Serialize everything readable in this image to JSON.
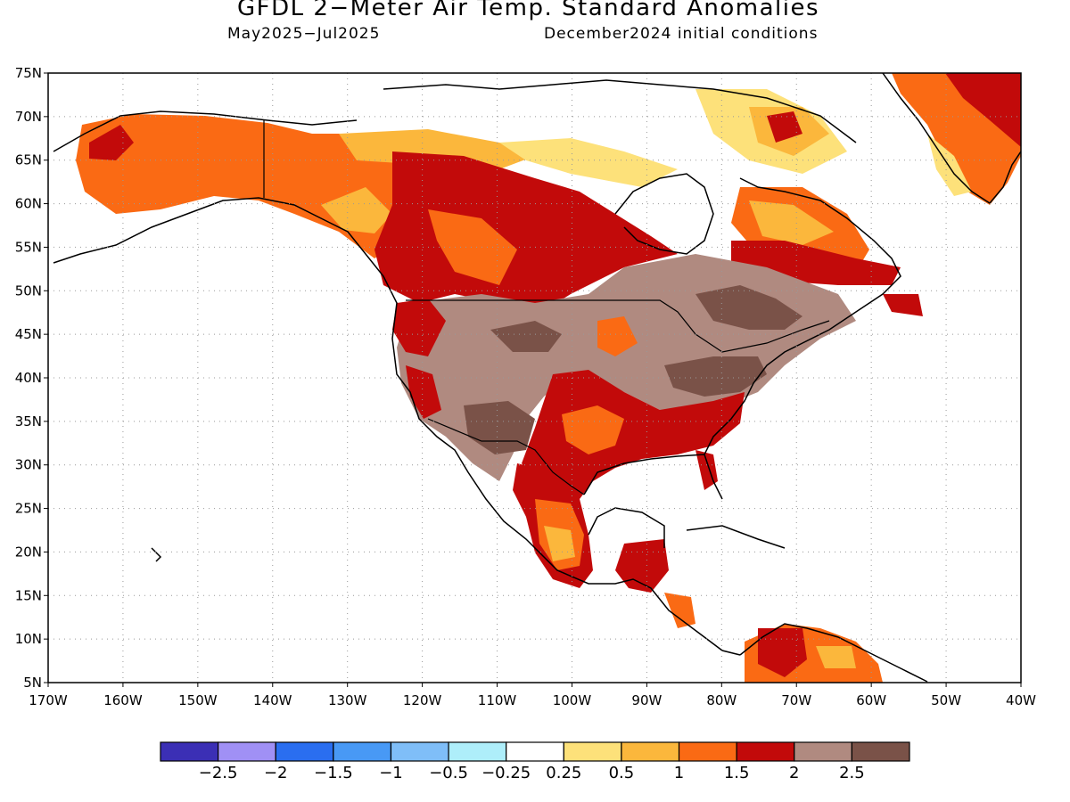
{
  "title": "GFDL 2−Meter Air Temp. Standard Anomalies",
  "subtitle_left": "May2025−Jul2025",
  "subtitle_right": "December2024 initial conditions",
  "lat_labels": [
    "75N",
    "70N",
    "65N",
    "60N",
    "55N",
    "50N",
    "45N",
    "40N",
    "35N",
    "30N",
    "25N",
    "20N",
    "15N",
    "10N",
    "5N"
  ],
  "lon_labels": [
    "170W",
    "160W",
    "150W",
    "140W",
    "130W",
    "120W",
    "110W",
    "100W",
    "90W",
    "80W",
    "70W",
    "60W",
    "50W",
    "40W"
  ],
  "colorbar": {
    "colors": [
      "#3b2fb5",
      "#a090f5",
      "#2a6ef0",
      "#4899f5",
      "#7fbef8",
      "#aeeefa",
      "#ffffff",
      "#fde17a",
      "#fbb73c",
      "#fa6a14",
      "#c20a0a",
      "#b08a80",
      "#7a5248"
    ],
    "labels": [
      "−2.5",
      "−2",
      "−1.5",
      "−1",
      "−0.5",
      "−0.25",
      "0.25",
      "0.5",
      "1",
      "1.5",
      "2",
      "2.5"
    ]
  },
  "map": {
    "region": "North America",
    "lon_range": [
      -170,
      -40
    ],
    "lat_range": [
      5,
      75
    ],
    "grid": "dotted",
    "variable": "2-meter air temperature standard anomaly",
    "field_colors": {
      "anom_2p5": "#7a5248",
      "anom_2": "#b08a80",
      "anom_1p5": "#c20a0a",
      "anom_1": "#fa6a14",
      "anom_0p5": "#fbb73c",
      "anom_0p25": "#fde17a",
      "neutral": "#ffffff"
    }
  }
}
